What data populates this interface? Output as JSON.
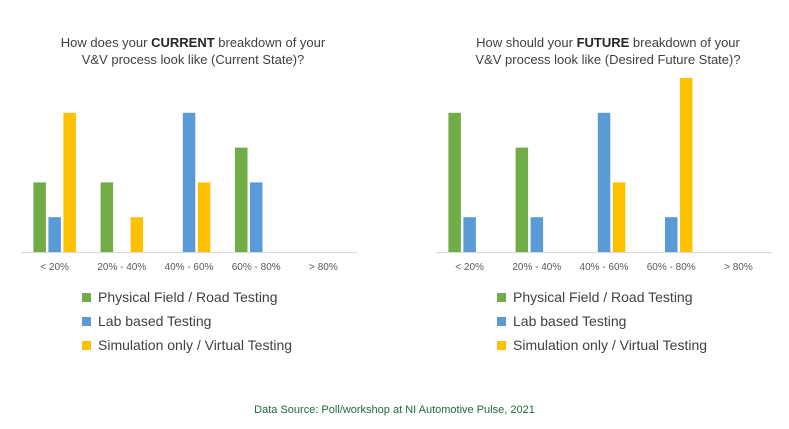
{
  "chart_data": [
    {
      "type": "bar",
      "title_parts": [
        "How does your ",
        "CURRENT",
        " breakdown of your",
        "V&V process look like (Current State)?"
      ],
      "categories": [
        "< 20%",
        "20% - 40%",
        "40% - 60%",
        "60% - 80%",
        "> 80%"
      ],
      "series": [
        {
          "name": "Physical Field / Road Testing",
          "color": "#70ad47",
          "values": [
            2,
            2,
            0,
            3,
            0
          ]
        },
        {
          "name": "Lab based Testing",
          "color": "#5b9bd5",
          "values": [
            1,
            0,
            4,
            2,
            0
          ]
        },
        {
          "name": "Simulation only / Virtual Testing",
          "color": "#ffc000",
          "values": [
            4,
            1,
            2,
            0,
            0
          ]
        }
      ],
      "xlabel": "",
      "ylabel": "",
      "ylim": [
        0,
        5
      ],
      "grid": false,
      "legend": "bottom"
    },
    {
      "type": "bar",
      "title_parts": [
        "How should your ",
        "FUTURE",
        " breakdown of your",
        "V&V process look like (Desired Future State)?"
      ],
      "categories": [
        "< 20%",
        "20% - 40%",
        "40% - 60%",
        "60% - 80%",
        "> 80%"
      ],
      "series": [
        {
          "name": "Physical Field / Road Testing",
          "color": "#70ad47",
          "values": [
            4,
            3,
            0,
            0,
            0
          ]
        },
        {
          "name": "Lab based Testing",
          "color": "#5b9bd5",
          "values": [
            1,
            1,
            4,
            1,
            0
          ]
        },
        {
          "name": "Simulation only / Virtual Testing",
          "color": "#ffc000",
          "values": [
            0,
            0,
            2,
            5,
            0
          ]
        }
      ],
      "xlabel": "",
      "ylabel": "",
      "ylim": [
        0,
        5
      ],
      "grid": false,
      "legend": "bottom"
    }
  ],
  "footer": {
    "source": "Data Source: Poll/workshop at NI Automotive Pulse, 2021"
  }
}
